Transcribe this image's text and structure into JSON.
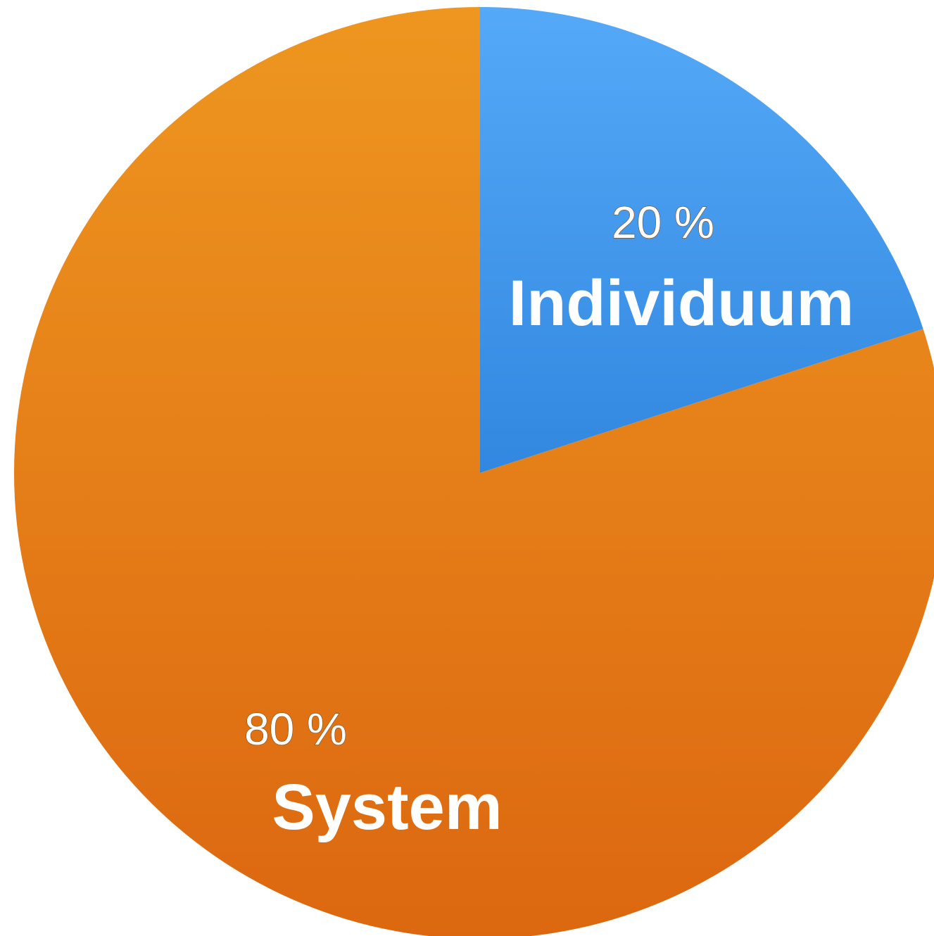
{
  "chart_data": {
    "type": "pie",
    "title": "",
    "slices": [
      {
        "name": "Individuum",
        "value": 20,
        "value_label": "20 %",
        "color_top": "#55a9f8",
        "color_bottom": "#0d66c6"
      },
      {
        "name": "System",
        "value": 80,
        "value_label": "80 %",
        "color_top": "#ee9620",
        "color_bottom": "#dc6710"
      }
    ],
    "start_angle_deg": 0,
    "direction": "clockwise",
    "legend": "none"
  }
}
